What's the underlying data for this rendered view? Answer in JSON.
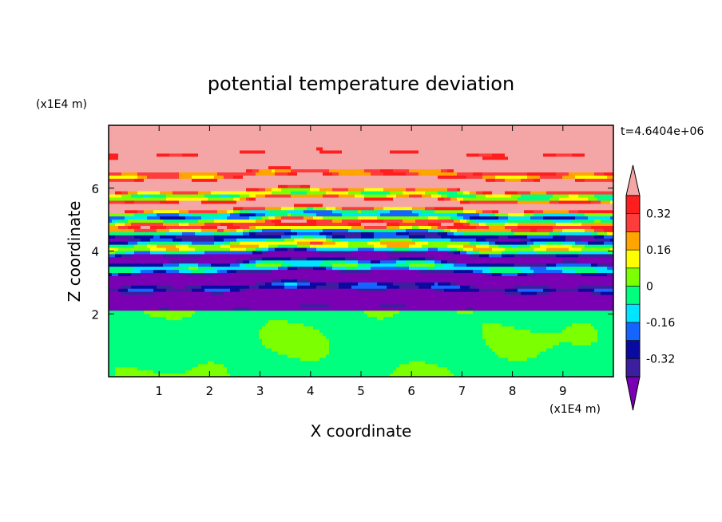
{
  "chart_data": {
    "type": "heatmap",
    "title": "potential temperature deviation",
    "time_label": "t=4.6404e+06",
    "xlabel": "X coordinate",
    "ylabel": "Z coordinate",
    "x_unit": "(x1E4 m)",
    "y_unit": "(x1E4 m)",
    "xlim": [
      0,
      10
    ],
    "ylim": [
      0,
      8
    ],
    "x_ticks": [
      "1",
      "2",
      "3",
      "4",
      "5",
      "6",
      "7",
      "8",
      "9"
    ],
    "y_ticks": [
      "2",
      "4",
      "6"
    ],
    "colorbar": {
      "levels": [
        -0.4,
        -0.32,
        -0.24,
        -0.16,
        -0.08,
        0,
        0.08,
        0.16,
        0.24,
        0.32,
        0.4
      ],
      "labels": [
        "0.32",
        "0.16",
        "0",
        "-0.16",
        "-0.32"
      ],
      "label_values": [
        0.32,
        0.16,
        0,
        -0.16,
        -0.32
      ],
      "colors": [
        "#6a0dad",
        "#3c1f9e",
        "#0a0aa0",
        "#1464ff",
        "#00e5ff",
        "#00ff7f",
        "#7cff00",
        "#ffff00",
        "#ffa500",
        "#ff3c3c",
        "#ff1e1e",
        "#f4a6a6"
      ],
      "extend_low_color": "#7a00b4",
      "extend_high_color": "#f4a6a6"
    }
  }
}
